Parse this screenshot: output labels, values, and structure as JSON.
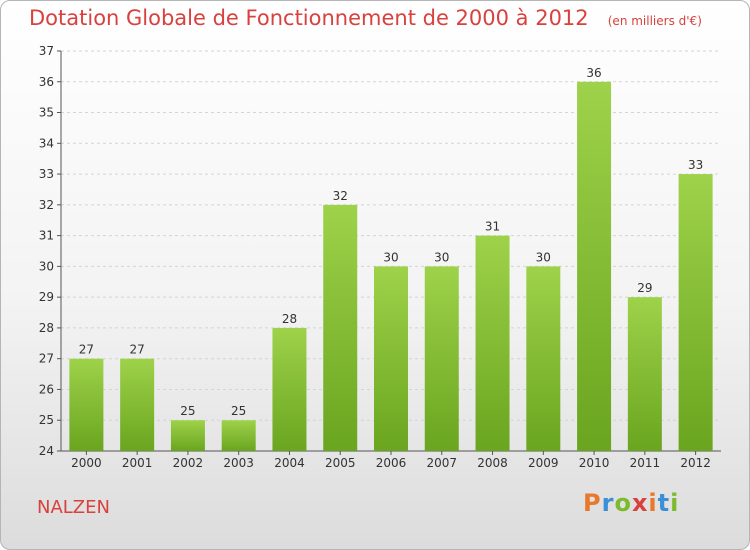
{
  "chart_data": {
    "type": "bar",
    "title": "Dotation Globale de Fonctionnement de 2000 à 2012",
    "subtitle": "(en milliers d'€)",
    "categories": [
      "2000",
      "2001",
      "2002",
      "2003",
      "2004",
      "2005",
      "2006",
      "2007",
      "2008",
      "2009",
      "2010",
      "2011",
      "2012"
    ],
    "values": [
      27,
      27,
      25,
      25,
      28,
      32,
      30,
      30,
      31,
      30,
      36,
      29,
      33
    ],
    "ylim": [
      24,
      37
    ],
    "yticks": [
      24,
      25,
      26,
      27,
      28,
      29,
      30,
      31,
      32,
      33,
      34,
      35,
      36,
      37
    ],
    "xlabel": "",
    "ylabel": "",
    "grid": true,
    "bar_color": "#7dbb2e"
  },
  "location": "NALZEN",
  "brand": {
    "letters": [
      "P",
      "r",
      "o",
      "x",
      "i",
      "t",
      "i"
    ],
    "colors": [
      "#e8792a",
      "#3a8fd6",
      "#7dbb2e",
      "#d8413d",
      "#e8792a",
      "#3a8fd6",
      "#7dbb2e"
    ]
  }
}
